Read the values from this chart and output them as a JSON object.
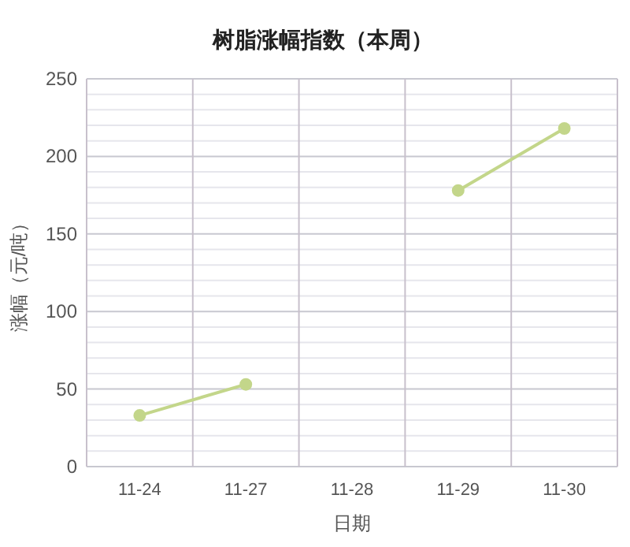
{
  "chart_data": {
    "type": "line",
    "title": "树脂涨幅指数（本周）",
    "xlabel": "日期",
    "ylabel": "涨幅（元/吨）",
    "categories": [
      "11-24",
      "11-27",
      "11-28",
      "11-29",
      "11-30"
    ],
    "series": [
      {
        "color": "#c3d68a",
        "values": [
          33,
          53,
          null,
          178,
          218
        ]
      }
    ],
    "ylim": [
      0,
      250
    ],
    "yticks": [
      0,
      50,
      100,
      150,
      200,
      250
    ],
    "grid": true,
    "marker": "circle",
    "line_style": "solid"
  }
}
